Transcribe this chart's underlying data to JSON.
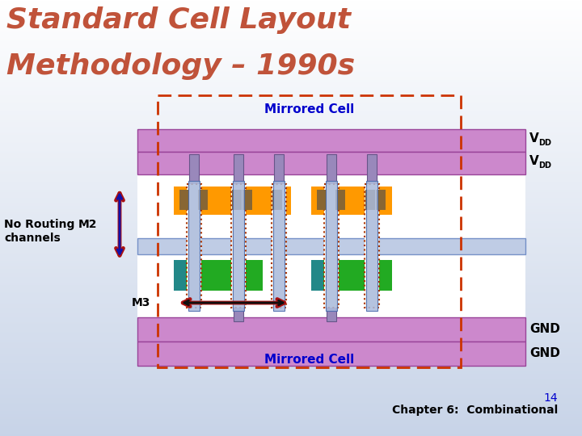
{
  "title_line1": "Standard Cell Layout",
  "title_line2": "Methodology – 1990s",
  "title_color": "#c0533a",
  "slide_bg_top": "#ffffff",
  "slide_bg_bottom": "#c8d4e8",
  "mirrored_cell_label": "Mirrored Cell",
  "mirrored_cell_color": "#0000cc",
  "no_routing_label": "No Routing\nchannels",
  "m2_label": "M2",
  "m3_label": "M3",
  "purple_band_color": "#cc88cc",
  "purple_band_edge": "#994499",
  "white_cell_bg": "#ffffff",
  "blue_wire_color": "#aabbdd",
  "blue_wire_edge": "#5577bb",
  "green_color": "#22aa22",
  "teal_color": "#228888",
  "orange_color": "#ff9900",
  "brown_color": "#886633",
  "poly_fill": "#f8f4ee",
  "poly_edge": "#aa3300",
  "gate_color": "#9988bb",
  "gate_edge": "#665588",
  "blue_bar_color": "#aabbdd",
  "blue_bar_edge": "#4466aa",
  "dash_rect_color": "#cc3300",
  "arrow_outer": "#aa1111",
  "arrow_inner_v": "#1111aa",
  "arrow_inner_h": "#111111",
  "footer_num_color": "#0000cc",
  "footer_text_color": "#000000"
}
